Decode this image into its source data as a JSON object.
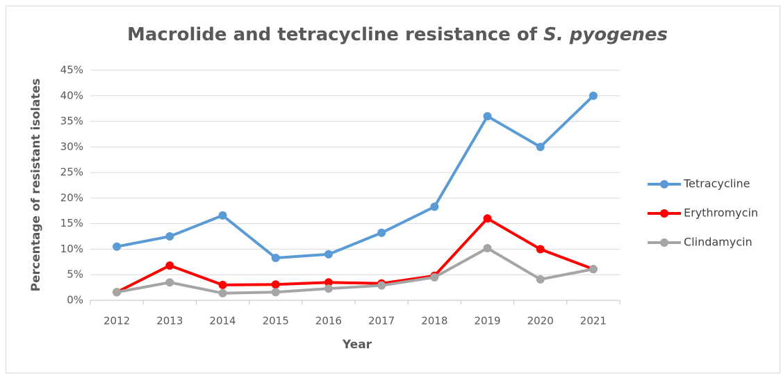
{
  "chart_data": {
    "type": "line",
    "title": "Macrolide and tetracycline resistance of",
    "title_italic": "S. pyogenes",
    "x_label": "Year",
    "y_label": "Percentage of resistant isolates",
    "categories": [
      "2012",
      "2013",
      "2014",
      "2015",
      "2016",
      "2017",
      "2018",
      "2019",
      "2020",
      "2021"
    ],
    "series": [
      {
        "name": "Tetracycline",
        "color": "#5b9bd5",
        "values": [
          10.5,
          12.5,
          16.6,
          8.3,
          9.0,
          13.2,
          18.3,
          36,
          30,
          40
        ]
      },
      {
        "name": "Erythromycin",
        "color": "#ff0000",
        "values": [
          1.6,
          6.8,
          3.0,
          3.1,
          3.5,
          3.3,
          4.8,
          16,
          10,
          6.1
        ]
      },
      {
        "name": "Clindamycin",
        "color": "#a5a5a5",
        "values": [
          1.6,
          3.5,
          1.4,
          1.6,
          2.3,
          2.9,
          4.5,
          10.2,
          4.1,
          6.1
        ]
      }
    ],
    "ylim": [
      0,
      45
    ],
    "yticks": [
      {
        "value": 0,
        "label": "0%"
      },
      {
        "value": 5,
        "label": "5%"
      },
      {
        "value": 10,
        "label": "10%"
      },
      {
        "value": 15,
        "label": "15%"
      },
      {
        "value": 20,
        "label": "20%"
      },
      {
        "value": 25,
        "label": "25%"
      },
      {
        "value": 30,
        "label": "30%"
      },
      {
        "value": 35,
        "label": "35%"
      },
      {
        "value": 40,
        "label": "40%"
      },
      {
        "value": 45,
        "label": "45%"
      }
    ],
    "grid": true,
    "legend": "right"
  }
}
